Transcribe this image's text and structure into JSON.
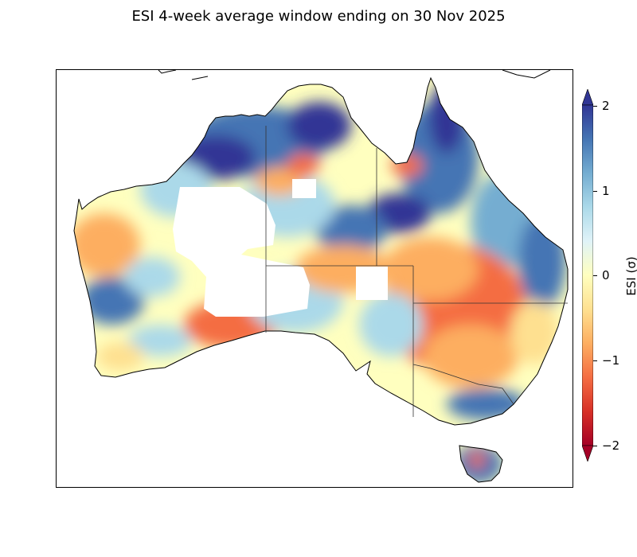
{
  "map": {
    "title": "ESI 4-week average window ending on 30 Nov 2025",
    "region": "Australia",
    "variable": "ESI",
    "window": "4-week average",
    "end_date": "30 Nov 2025"
  },
  "colorbar": {
    "label": "ESI (σ)",
    "ticks": [
      "2",
      "1",
      "0",
      "−1",
      "−2"
    ],
    "tick_values": [
      2,
      1,
      0,
      -1,
      -2
    ],
    "range": [
      -2,
      2
    ],
    "extend": "both",
    "colormap": "RdYlBu",
    "color_stops": [
      "#a50026",
      "#d73027",
      "#f46d43",
      "#fdae61",
      "#fee090",
      "#ffffbf",
      "#e0f3f8",
      "#abd9e9",
      "#74add1",
      "#4575b4",
      "#313695"
    ]
  }
}
